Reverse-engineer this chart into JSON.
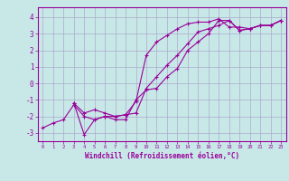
{
  "background_color": "#c8e8e8",
  "grid_color": "#aaaacc",
  "line_color": "#990099",
  "xlim": [
    -0.5,
    23.5
  ],
  "ylim": [
    -3.5,
    4.6
  ],
  "yticks": [
    -3,
    -2,
    -1,
    0,
    1,
    2,
    3,
    4
  ],
  "xticks": [
    0,
    1,
    2,
    3,
    4,
    5,
    6,
    7,
    8,
    9,
    10,
    11,
    12,
    13,
    14,
    15,
    16,
    17,
    18,
    19,
    20,
    21,
    22,
    23
  ],
  "xlabel": "Windchill (Refroidissement éolien,°C)",
  "line1": {
    "x": [
      0,
      1,
      2,
      3,
      4,
      5,
      6,
      7,
      8,
      9,
      10,
      11,
      12,
      13,
      14,
      15,
      16,
      17,
      18,
      19,
      20,
      21,
      22,
      23
    ],
    "y": [
      -2.7,
      -2.4,
      -2.2,
      -1.3,
      -2.0,
      -2.2,
      -2.0,
      -2.0,
      -1.9,
      -1.1,
      1.7,
      2.5,
      2.9,
      3.3,
      3.6,
      3.7,
      3.7,
      3.9,
      3.4,
      3.4,
      3.3,
      3.5,
      3.5,
      3.8
    ]
  },
  "line2": {
    "x": [
      3,
      4,
      5,
      6,
      7,
      8,
      9,
      10,
      11,
      12,
      13,
      14,
      15,
      16,
      17,
      18,
      19,
      20,
      21,
      22,
      23
    ],
    "y": [
      -1.2,
      -3.1,
      -2.2,
      -2.0,
      -2.2,
      -2.2,
      -1.0,
      -0.4,
      -0.3,
      0.4,
      0.9,
      2.0,
      2.5,
      3.0,
      3.8,
      3.8,
      3.2,
      3.3,
      3.5,
      3.5,
      3.8
    ]
  },
  "line3": {
    "x": [
      3,
      4,
      5,
      6,
      7,
      8,
      9,
      10,
      11,
      12,
      13,
      14,
      15,
      16,
      17,
      18,
      19,
      20,
      21,
      22,
      23
    ],
    "y": [
      -1.2,
      -1.8,
      -1.6,
      -1.8,
      -2.0,
      -1.9,
      -1.8,
      -0.3,
      0.4,
      1.1,
      1.7,
      2.4,
      3.1,
      3.3,
      3.5,
      3.8,
      3.2,
      3.3,
      3.5,
      3.5,
      3.8
    ]
  }
}
